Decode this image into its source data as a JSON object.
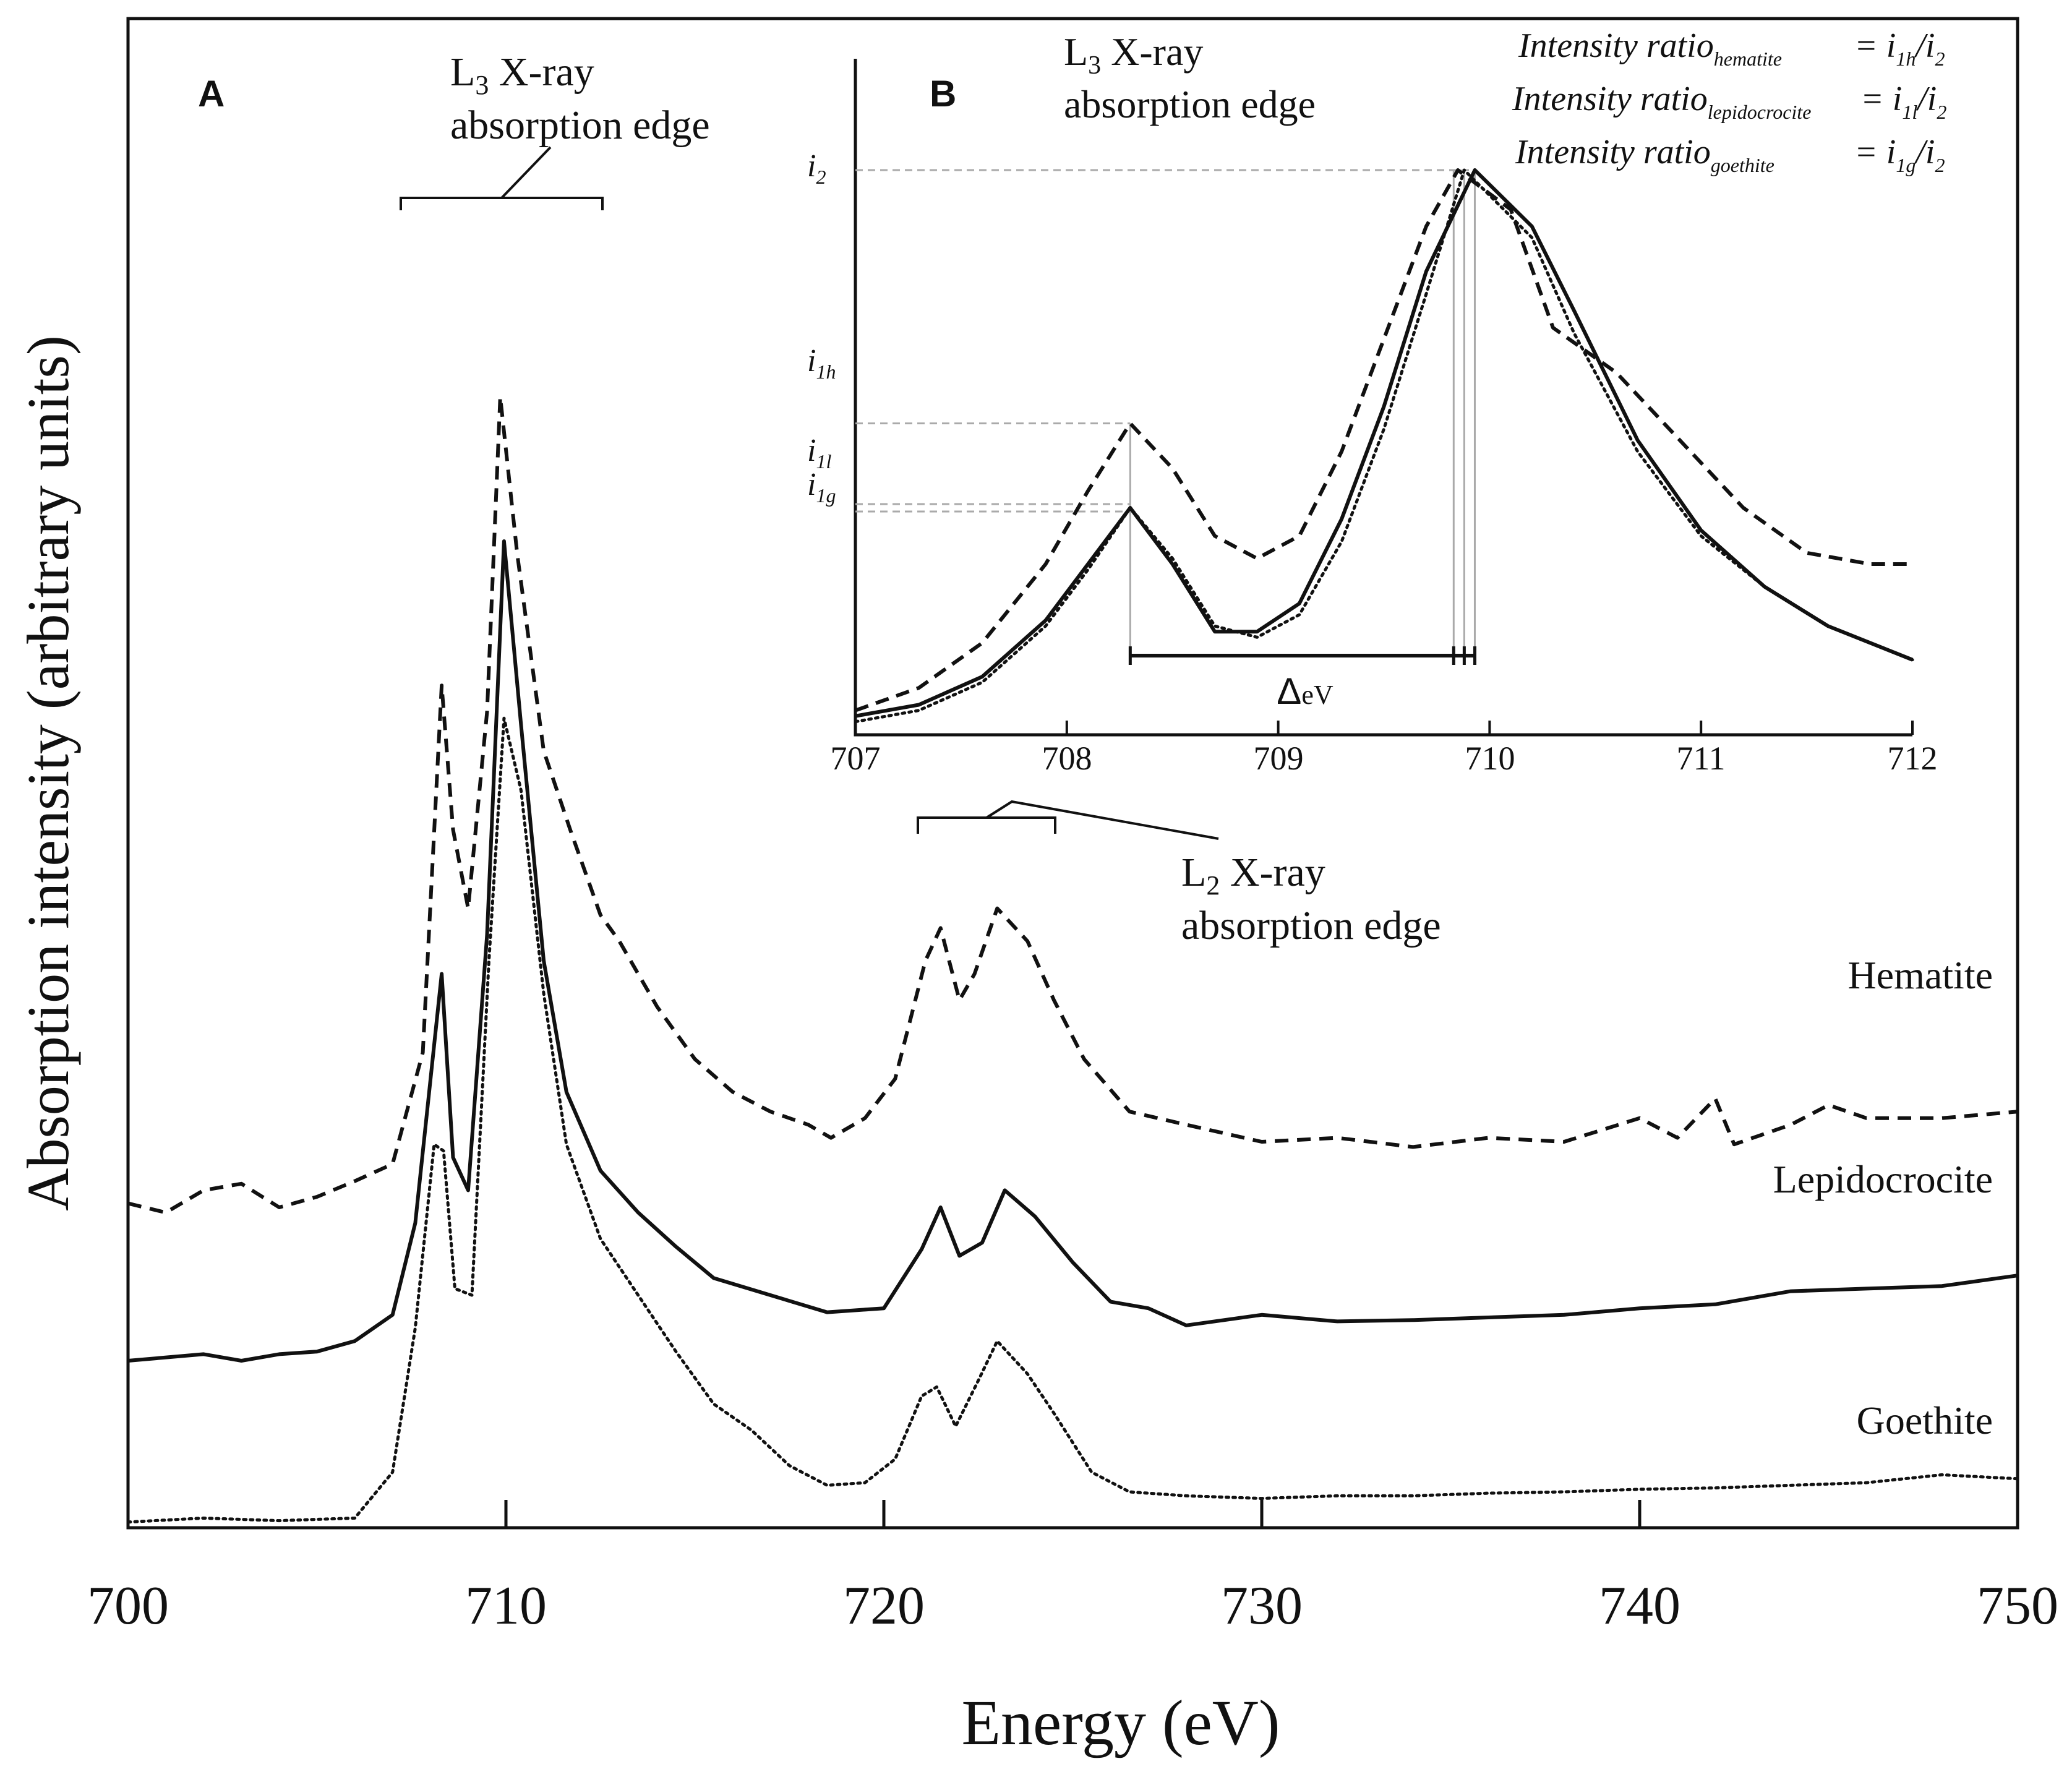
{
  "colors": {
    "ink": "#111111",
    "guide": "#aaaaaa",
    "background": "#ffffff"
  },
  "chart_data": [
    {
      "panel": "A",
      "type": "line",
      "xlabel": "Energy (eV)",
      "ylabel": "Absorption intensity (arbitrary units)",
      "xlim": [
        700,
        750
      ],
      "ylim": [
        0,
        10
      ],
      "xticks": [
        "700",
        "710",
        "720",
        "730",
        "740",
        "750"
      ],
      "series": [
        {
          "name": "Hematite",
          "style": "dashed",
          "points": [
            [
              700,
              2.45
            ],
            [
              701,
              2.38
            ],
            [
              702,
              2.55
            ],
            [
              703,
              2.6
            ],
            [
              704,
              2.42
            ],
            [
              705,
              2.5
            ],
            [
              706,
              2.62
            ],
            [
              707,
              2.75
            ],
            [
              707.8,
              3.6
            ],
            [
              708.3,
              6.4
            ],
            [
              708.6,
              5.3
            ],
            [
              709.0,
              4.7
            ],
            [
              709.5,
              6.2
            ],
            [
              709.85,
              8.6
            ],
            [
              710.3,
              7.4
            ],
            [
              711,
              5.9
            ],
            [
              711.7,
              5.3
            ],
            [
              712.5,
              4.65
            ],
            [
              713,
              4.45
            ],
            [
              714,
              3.95
            ],
            [
              715,
              3.55
            ],
            [
              716,
              3.3
            ],
            [
              717,
              3.15
            ],
            [
              718,
              3.05
            ],
            [
              718.6,
              2.95
            ],
            [
              719.5,
              3.1
            ],
            [
              720.3,
              3.4
            ],
            [
              721.1,
              4.3
            ],
            [
              721.5,
              4.55
            ],
            [
              722.0,
              4.0
            ],
            [
              722.4,
              4.2
            ],
            [
              723.0,
              4.7
            ],
            [
              723.8,
              4.45
            ],
            [
              724.5,
              4.0
            ],
            [
              725.3,
              3.55
            ],
            [
              726.5,
              3.15
            ],
            [
              728,
              3.05
            ],
            [
              730,
              2.92
            ],
            [
              732,
              2.95
            ],
            [
              734,
              2.88
            ],
            [
              736,
              2.95
            ],
            [
              738,
              2.92
            ],
            [
              740,
              3.1
            ],
            [
              741,
              2.95
            ],
            [
              742,
              3.25
            ],
            [
              742.5,
              2.9
            ],
            [
              744,
              3.05
            ],
            [
              745,
              3.2
            ],
            [
              746,
              3.1
            ],
            [
              748,
              3.1
            ],
            [
              750,
              3.15
            ]
          ]
        },
        {
          "name": "Lepidocrocite",
          "style": "solid",
          "points": [
            [
              700,
              1.25
            ],
            [
              702,
              1.3
            ],
            [
              703,
              1.25
            ],
            [
              704,
              1.3
            ],
            [
              705,
              1.32
            ],
            [
              706,
              1.4
            ],
            [
              707,
              1.6
            ],
            [
              707.6,
              2.3
            ],
            [
              708.3,
              4.2
            ],
            [
              708.6,
              2.8
            ],
            [
              709.0,
              2.55
            ],
            [
              709.5,
              4.5
            ],
            [
              709.95,
              7.5
            ],
            [
              710.4,
              6.1
            ],
            [
              711,
              4.3
            ],
            [
              711.6,
              3.3
            ],
            [
              712.5,
              2.7
            ],
            [
              713.5,
              2.38
            ],
            [
              714.5,
              2.12
            ],
            [
              715.5,
              1.88
            ],
            [
              717,
              1.75
            ],
            [
              718.5,
              1.62
            ],
            [
              720,
              1.65
            ],
            [
              721,
              2.1
            ],
            [
              721.5,
              2.42
            ],
            [
              722.0,
              2.05
            ],
            [
              722.6,
              2.15
            ],
            [
              723.2,
              2.55
            ],
            [
              724,
              2.35
            ],
            [
              725,
              2.0
            ],
            [
              726,
              1.7
            ],
            [
              727,
              1.65
            ],
            [
              728,
              1.52
            ],
            [
              730,
              1.6
            ],
            [
              732,
              1.55
            ],
            [
              734,
              1.56
            ],
            [
              736,
              1.58
            ],
            [
              738,
              1.6
            ],
            [
              740,
              1.65
            ],
            [
              742,
              1.68
            ],
            [
              744,
              1.78
            ],
            [
              746,
              1.8
            ],
            [
              748,
              1.82
            ],
            [
              750,
              1.9
            ]
          ]
        },
        {
          "name": "Goethite",
          "style": "dotted",
          "points": [
            [
              700,
              0.02
            ],
            [
              702,
              0.05
            ],
            [
              704,
              0.03
            ],
            [
              706,
              0.05
            ],
            [
              707,
              0.4
            ],
            [
              707.6,
              1.5
            ],
            [
              708.1,
              2.9
            ],
            [
              708.35,
              2.85
            ],
            [
              708.65,
              1.8
            ],
            [
              709.1,
              1.75
            ],
            [
              709.55,
              4.3
            ],
            [
              709.95,
              6.15
            ],
            [
              710.4,
              5.6
            ],
            [
              711,
              4.05
            ],
            [
              711.6,
              2.9
            ],
            [
              712.5,
              2.18
            ],
            [
              713.5,
              1.75
            ],
            [
              714.5,
              1.32
            ],
            [
              715.5,
              0.92
            ],
            [
              716.5,
              0.72
            ],
            [
              717.5,
              0.45
            ],
            [
              718.5,
              0.3
            ],
            [
              719.5,
              0.32
            ],
            [
              720.3,
              0.5
            ],
            [
              721,
              0.98
            ],
            [
              721.4,
              1.05
            ],
            [
              721.9,
              0.75
            ],
            [
              722.5,
              1.1
            ],
            [
              723,
              1.4
            ],
            [
              723.8,
              1.15
            ],
            [
              724.5,
              0.85
            ],
            [
              725.5,
              0.4
            ],
            [
              726.5,
              0.25
            ],
            [
              728,
              0.22
            ],
            [
              730,
              0.2
            ],
            [
              732,
              0.22
            ],
            [
              734,
              0.22
            ],
            [
              736,
              0.24
            ],
            [
              738,
              0.25
            ],
            [
              740,
              0.27
            ],
            [
              742,
              0.28
            ],
            [
              744,
              0.3
            ],
            [
              746,
              0.32
            ],
            [
              748,
              0.38
            ],
            [
              750,
              0.35
            ]
          ]
        }
      ],
      "annotations": {
        "panel_label": "A",
        "l3_edge_prefix": "L",
        "l3_edge_sub": "3",
        "l3_edge_line1_rest": " X-ray",
        "l3_edge_line2": "absorption edge",
        "l2_edge_prefix": "L",
        "l2_edge_sub": "2",
        "l2_edge_line1_rest": " X-ray",
        "l2_edge_line2": "absorption edge",
        "series_labels": [
          "Hematite",
          "Lepidocrocite",
          "Goethite"
        ]
      }
    },
    {
      "panel": "B",
      "type": "line",
      "xlim": [
        707,
        712
      ],
      "ylim": [
        0,
        1
      ],
      "xticks": [
        "707",
        "708",
        "709",
        "710",
        "711",
        "712"
      ],
      "series": [
        {
          "name": "Hematite",
          "style": "dashed",
          "points": [
            [
              707,
              0.04
            ],
            [
              707.3,
              0.08
            ],
            [
              707.6,
              0.16
            ],
            [
              707.9,
              0.3
            ],
            [
              708.1,
              0.43
            ],
            [
              708.3,
              0.55
            ],
            [
              708.5,
              0.47
            ],
            [
              708.7,
              0.35
            ],
            [
              708.9,
              0.31
            ],
            [
              709.1,
              0.35
            ],
            [
              709.3,
              0.5
            ],
            [
              709.5,
              0.7
            ],
            [
              709.7,
              0.9
            ],
            [
              709.85,
              1.0
            ],
            [
              710.1,
              0.93
            ],
            [
              710.3,
              0.72
            ],
            [
              710.6,
              0.64
            ],
            [
              710.9,
              0.52
            ],
            [
              711.2,
              0.4
            ],
            [
              711.5,
              0.32
            ],
            [
              711.8,
              0.3
            ],
            [
              712,
              0.3
            ]
          ]
        },
        {
          "name": "Lepidocrocite",
          "style": "solid",
          "points": [
            [
              707,
              0.03
            ],
            [
              707.3,
              0.05
            ],
            [
              707.6,
              0.1
            ],
            [
              707.9,
              0.2
            ],
            [
              708.1,
              0.3
            ],
            [
              708.3,
              0.4
            ],
            [
              708.5,
              0.3
            ],
            [
              708.7,
              0.18
            ],
            [
              708.9,
              0.18
            ],
            [
              709.1,
              0.23
            ],
            [
              709.3,
              0.38
            ],
            [
              709.5,
              0.58
            ],
            [
              709.7,
              0.82
            ],
            [
              709.93,
              1.0
            ],
            [
              710.2,
              0.9
            ],
            [
              710.4,
              0.75
            ],
            [
              710.7,
              0.52
            ],
            [
              711,
              0.36
            ],
            [
              711.3,
              0.26
            ],
            [
              711.6,
              0.19
            ],
            [
              712,
              0.13
            ]
          ]
        },
        {
          "name": "Goethite",
          "style": "dotted",
          "points": [
            [
              707,
              0.02
            ],
            [
              707.3,
              0.04
            ],
            [
              707.6,
              0.09
            ],
            [
              707.9,
              0.19
            ],
            [
              708.1,
              0.29
            ],
            [
              708.3,
              0.4
            ],
            [
              708.5,
              0.31
            ],
            [
              708.7,
              0.19
            ],
            [
              708.9,
              0.17
            ],
            [
              709.1,
              0.21
            ],
            [
              709.3,
              0.34
            ],
            [
              709.5,
              0.54
            ],
            [
              709.7,
              0.78
            ],
            [
              709.88,
              1.0
            ],
            [
              710.2,
              0.88
            ],
            [
              710.4,
              0.71
            ],
            [
              710.7,
              0.5
            ],
            [
              711,
              0.35
            ],
            [
              711.3,
              0.26
            ],
            [
              711.6,
              0.19
            ],
            [
              712,
              0.13
            ]
          ]
        }
      ],
      "peak_markers": {
        "x1": 708.3,
        "x2_values": [
          709.83,
          709.88,
          709.93
        ]
      },
      "annotations": {
        "panel_label": "B",
        "l3_edge_prefix": "L",
        "l3_edge_sub": "3",
        "l3_edge_line1_rest": " X-ray",
        "l3_edge_line2": "absorption edge",
        "delta_symbol": "Δ",
        "delta_unit": "eV",
        "i2_base": "i",
        "i2_sub": "2",
        "i1h_base": "i",
        "i1h_sub": "1h",
        "i1l_base": "i",
        "i1l_sub": "1l",
        "i1g_base": "i",
        "i1g_sub": "1g"
      },
      "equations": [
        {
          "label": "Intensity ratio",
          "sub": "hematite",
          "rhs_a": "= i",
          "rhs_a_sub": "1h",
          "rhs_b": "/i",
          "rhs_b_sub": "2"
        },
        {
          "label": "Intensity ratio",
          "sub": "lepidocrocite",
          "rhs_a": "= i",
          "rhs_a_sub": "1l",
          "rhs_b": "/i",
          "rhs_b_sub": "2"
        },
        {
          "label": "Intensity ratio",
          "sub": "goethite",
          "rhs_a": "= i",
          "rhs_a_sub": "1g",
          "rhs_b": "/i",
          "rhs_b_sub": "2"
        }
      ]
    }
  ]
}
